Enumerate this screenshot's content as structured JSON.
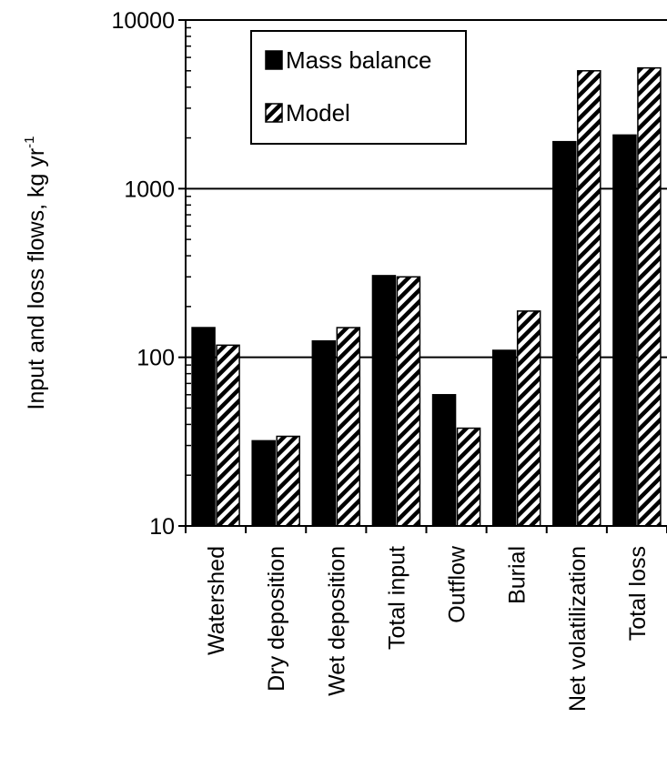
{
  "chart_data": {
    "type": "bar",
    "title": "",
    "xlabel": "",
    "ylabel": "Input and loss flows, kg yr",
    "ylabel_superscript": "-1",
    "yscale": "log",
    "ylim": [
      10,
      10000
    ],
    "yticks": [
      10,
      100,
      1000,
      10000
    ],
    "ytick_labels": [
      "10",
      "100",
      "1000",
      "10000"
    ],
    "grid": "horizontal major lines at 100, 1000, 10000",
    "legend_position": "top-left",
    "categories": [
      "Watershed",
      "Dry deposition",
      "Wet deposition",
      "Total input",
      "Outflow",
      "Burial",
      "Net volatilization",
      "Total loss"
    ],
    "series": [
      {
        "name": "Mass balance",
        "fill": "solid black",
        "values": [
          150,
          32,
          125,
          305,
          60,
          110,
          1900,
          2080
        ]
      },
      {
        "name": "Model",
        "fill": "black diagonal hatch on white",
        "values": [
          118,
          34,
          150,
          300,
          38,
          188,
          5000,
          5200
        ]
      }
    ],
    "colors": {
      "bar_solid": "#000000",
      "hatch": "#000000",
      "background": "#ffffff"
    }
  }
}
